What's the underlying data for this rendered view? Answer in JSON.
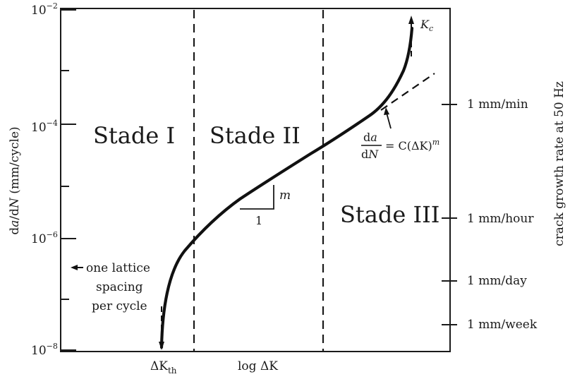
{
  "axes": {
    "y_left_label_a": "d",
    "y_left_label_b": "a",
    "y_left_label_c": "/d",
    "y_left_label_d": "N",
    "y_left_label_e": " (mm/cycle)",
    "y_tick_labels": [
      {
        "base": "10",
        "exp": "−2"
      },
      {
        "base": "10",
        "exp": "−4"
      },
      {
        "base": "10",
        "exp": "−6"
      },
      {
        "base": "10",
        "exp": "−8"
      }
    ],
    "x_threshold_a": "ΔK",
    "x_threshold_b": "th",
    "x_label": "log ΔK",
    "y_right_label": "crack growth rate at 50 Hz",
    "right_ticks": [
      "1 mm/min",
      "1 mm/hour",
      "1 mm/day",
      "1 mm/week"
    ]
  },
  "regions": {
    "stage1": "Stade I",
    "stage2": "Stade II",
    "stage3": "Stade III"
  },
  "annotations": {
    "kc_a": "K",
    "kc_b": "c",
    "slope_m": "m",
    "slope_1": "1",
    "lattice_lines": [
      "one lattice",
      "spacing",
      "per cycle"
    ],
    "eq_top_a": "d",
    "eq_top_b": "a",
    "eq_bottom_a": "d",
    "eq_bottom_b": "N",
    "eq_rhs_a": "= C(ΔK)",
    "eq_rhs_b": "m"
  },
  "chart_data": {
    "type": "line",
    "title": "",
    "xlabel": "log ΔK",
    "ylabel": "da/dN (mm/cycle)",
    "y_scale": "log",
    "ylim": [
      1e-08,
      0.01
    ],
    "secondary_ylabel": "crack growth rate at 50 Hz",
    "grid": false
  }
}
